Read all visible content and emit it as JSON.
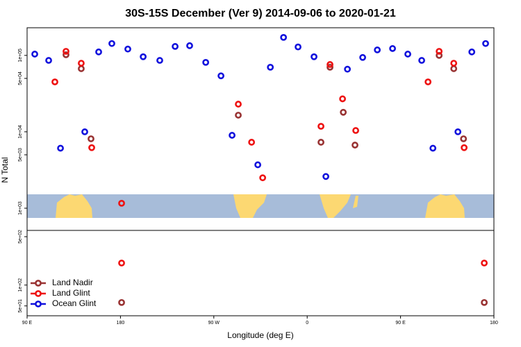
{
  "chart_data": [
    {
      "type": "scatter",
      "title": "30S-15S December (Ver 9)   2014-09-06 to 2020-01-21",
      "ylabel": "N Total",
      "log_y": true,
      "xlim": [
        90,
        540
      ],
      "ylim": [
        512,
        230000
      ],
      "yticks": [
        {
          "value": 1000,
          "label": "1e+03"
        },
        {
          "value": 5000,
          "label": "5e+03"
        },
        {
          "value": 10000,
          "label": "1e+04"
        },
        {
          "value": 50000,
          "label": "5e+04"
        },
        {
          "value": 100000,
          "label": "1e+05"
        }
      ],
      "series": [
        {
          "color": "#993333",
          "x": [
            127.5,
            142.2,
            151.6,
            293.6,
            373.3,
            394.8,
            406.1,
            382,
            487.2,
            501.3,
            510.7
          ],
          "values": [
            102000,
            67000,
            8100,
            16500,
            7300,
            18000,
            6700,
            70000,
            100000,
            67000,
            8100
          ]
        },
        {
          "color": "#ee1111",
          "x": [
            116.8,
            127.5,
            142.2,
            152.3,
            181.1,
            293.6,
            306.4,
            317.1,
            373.3,
            382,
            394.1,
            406.8,
            476.5,
            487.2,
            501.3,
            511.3
          ],
          "values": [
            45000,
            113000,
            79000,
            6200,
            1160,
            23000,
            7300,
            2500,
            11800,
            76000,
            27000,
            10400,
            45000,
            113000,
            79000,
            6200
          ]
        },
        {
          "color": "#1111dd",
          "x": [
            97.4,
            110.8,
            122.2,
            145.6,
            159,
            171.7,
            187.1,
            201.9,
            217.9,
            232.7,
            246.7,
            262.2,
            276.9,
            287.6,
            312.4,
            324.5,
            337.2,
            351.2,
            366.6,
            378,
            398.8,
            413.5,
            427.6,
            442.3,
            457,
            470.4,
            481.2,
            505.3,
            518.7,
            532
          ],
          "values": [
            104000,
            86000,
            6100,
            10000,
            111000,
            143000,
            121000,
            96000,
            86000,
            131000,
            134000,
            81000,
            54000,
            9000,
            3700,
            70000,
            172000,
            129000,
            96000,
            2600,
            66000,
            94000,
            118000,
            123000,
            104000,
            86000,
            6100,
            10000,
            111000,
            143000
          ]
        }
      ]
    },
    {
      "type": "scatter",
      "xlabel": "Longitude (deg E)",
      "log_y": true,
      "xlim": [
        90,
        540
      ],
      "ylim": [
        36,
        616
      ],
      "xticks": [
        {
          "value": 90,
          "label": "90 E"
        },
        {
          "value": 180,
          "label": "180"
        },
        {
          "value": 270,
          "label": "90 W"
        },
        {
          "value": 360,
          "label": "0"
        },
        {
          "value": 450,
          "label": "90 E"
        },
        {
          "value": 540,
          "label": "180"
        }
      ],
      "yticks": [
        {
          "value": 50,
          "label": "5e+01"
        },
        {
          "value": 100,
          "label": "1e+02"
        },
        {
          "value": 500,
          "label": "5e+02"
        }
      ],
      "legend": "lower left",
      "series": [
        {
          "name": "Land Nadir",
          "color": "#993333",
          "x": [
            181.1,
            530.7
          ],
          "values": [
            56,
            56
          ]
        },
        {
          "name": "Land Glint",
          "color": "#ee1111",
          "x": [
            181.1,
            530.7
          ],
          "values": [
            208,
            208
          ]
        },
        {
          "name": "Ocean Glint",
          "color": "#1111dd",
          "x": [],
          "values": []
        }
      ]
    }
  ]
}
